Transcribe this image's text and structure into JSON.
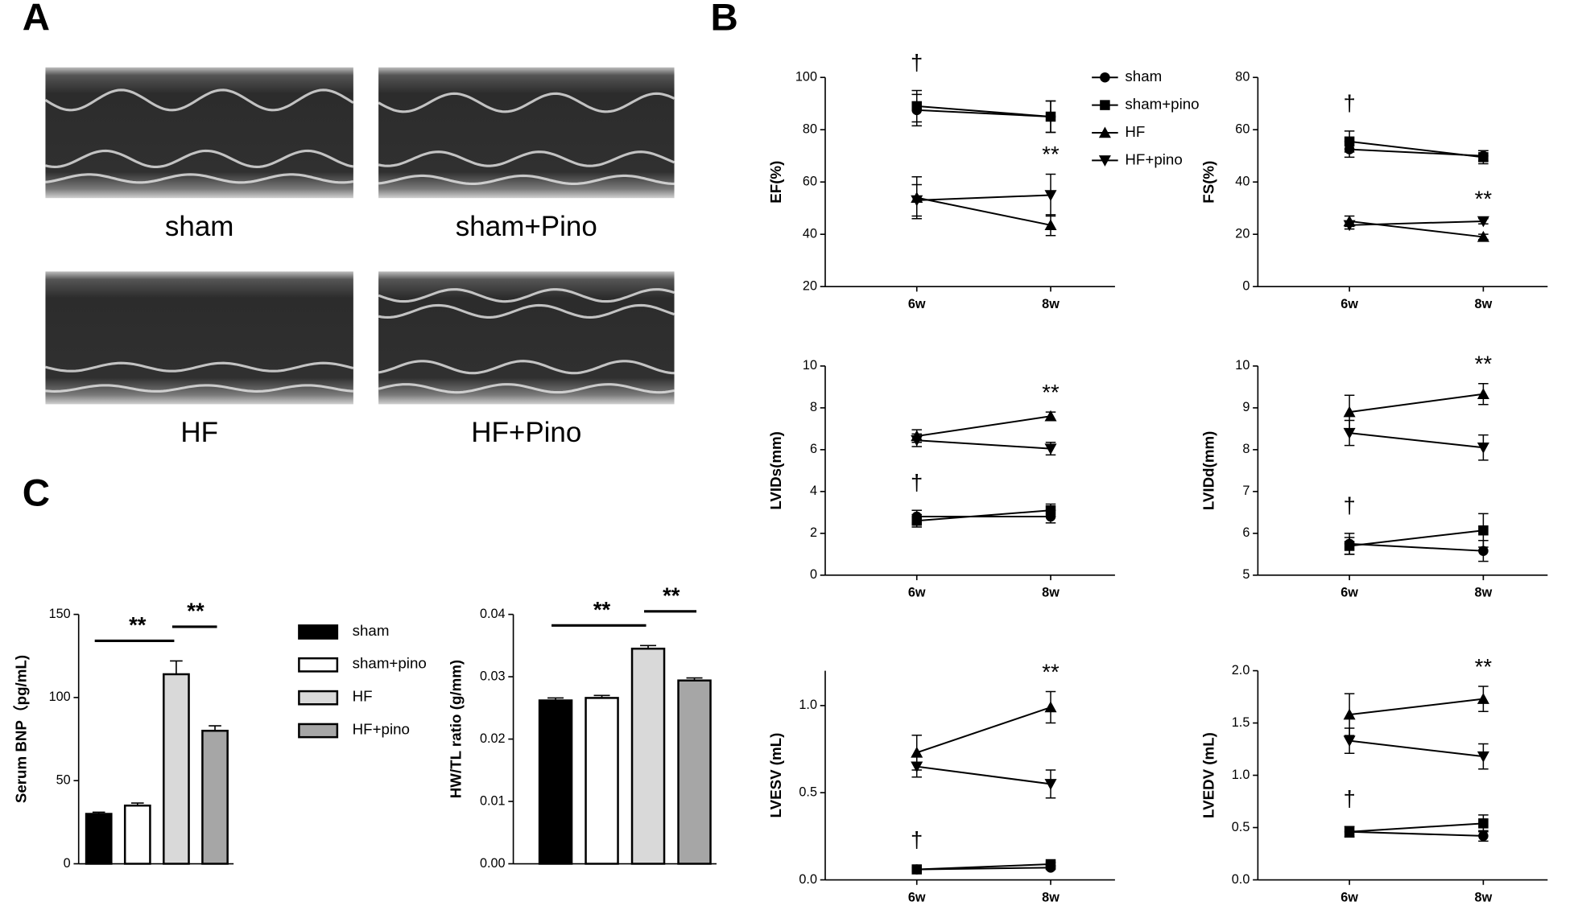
{
  "panel_labels": [
    "A",
    "B",
    "C"
  ],
  "echo_images": [
    {
      "label": "sham"
    },
    {
      "label": "sham+Pino"
    },
    {
      "label": "HF"
    },
    {
      "label": "HF+Pino"
    }
  ],
  "chart_data": [
    {
      "type": "line",
      "ylabel": "EF(%)",
      "categories": [
        "6w",
        "8w"
      ],
      "ylim": [
        20,
        100
      ],
      "yticks": [
        20,
        40,
        60,
        80,
        100
      ],
      "legend": "upper right",
      "series": [
        {
          "name": "sham",
          "marker": "circle",
          "color": "#000000",
          "values": [
            87.5,
            85
          ],
          "errors": [
            6,
            6
          ]
        },
        {
          "name": "sham+pino",
          "marker": "square",
          "color": "#000000",
          "values": [
            89,
            85
          ],
          "errors": [
            6,
            6
          ]
        },
        {
          "name": "HF",
          "marker": "triangle-up",
          "color": "#000000",
          "values": [
            54,
            43.5
          ],
          "errors": [
            8,
            4
          ]
        },
        {
          "name": "HF+pino",
          "marker": "triangle-down",
          "color": "#000000",
          "values": [
            53,
            55
          ],
          "errors": [
            6,
            8
          ]
        }
      ],
      "annotations": [
        "†",
        "**"
      ]
    },
    {
      "type": "line",
      "ylabel": "FS(%)",
      "categories": [
        "6w",
        "8w"
      ],
      "ylim": [
        0,
        80
      ],
      "yticks": [
        0,
        20,
        40,
        60,
        80
      ],
      "series": [
        {
          "marker": "circle",
          "color": "#000000",
          "values": [
            52.5,
            50
          ],
          "errors": [
            3,
            2
          ]
        },
        {
          "marker": "square",
          "color": "#000000",
          "values": [
            55.5,
            49.5
          ],
          "errors": [
            4,
            2.5
          ]
        },
        {
          "marker": "triangle-up",
          "color": "#000000",
          "values": [
            25,
            19
          ],
          "errors": [
            2,
            1
          ]
        },
        {
          "marker": "triangle-down",
          "color": "#000000",
          "values": [
            23.5,
            25
          ],
          "errors": [
            1.5,
            1
          ]
        }
      ],
      "annotations": [
        "†",
        "**"
      ]
    },
    {
      "type": "line",
      "ylabel": "LVIDs(mm)",
      "categories": [
        "6w",
        "8w"
      ],
      "ylim": [
        0,
        10
      ],
      "yticks": [
        0,
        2,
        4,
        6,
        8,
        10
      ],
      "series": [
        {
          "marker": "circle",
          "color": "#000000",
          "values": [
            2.8,
            2.8
          ],
          "errors": [
            0.3,
            0.3
          ]
        },
        {
          "marker": "square",
          "color": "#000000",
          "values": [
            2.6,
            3.1
          ],
          "errors": [
            0.3,
            0.3
          ]
        },
        {
          "marker": "triangle-up",
          "color": "#000000",
          "values": [
            6.65,
            7.6
          ],
          "errors": [
            0.3,
            0.2
          ]
        },
        {
          "marker": "triangle-down",
          "color": "#000000",
          "values": [
            6.45,
            6.05
          ],
          "errors": [
            0.3,
            0.3
          ]
        }
      ],
      "annotations": [
        "†",
        "**"
      ]
    },
    {
      "type": "line",
      "ylabel": "LVIDd(mm)",
      "categories": [
        "6w",
        "8w"
      ],
      "ylim": [
        5,
        10
      ],
      "yticks": [
        5,
        6,
        7,
        8,
        9,
        10
      ],
      "series": [
        {
          "marker": "circle",
          "color": "#000000",
          "values": [
            5.75,
            5.58
          ],
          "errors": [
            0.25,
            0.25
          ]
        },
        {
          "marker": "square",
          "color": "#000000",
          "values": [
            5.7,
            6.07
          ],
          "errors": [
            0.2,
            0.4
          ]
        },
        {
          "marker": "triangle-up",
          "color": "#000000",
          "values": [
            8.9,
            9.33
          ],
          "errors": [
            0.4,
            0.25
          ]
        },
        {
          "marker": "triangle-down",
          "color": "#000000",
          "values": [
            8.4,
            8.05
          ],
          "errors": [
            0.3,
            0.3
          ]
        }
      ],
      "annotations": [
        "†",
        "**"
      ]
    },
    {
      "type": "line",
      "ylabel": "LVESV (mL)",
      "categories": [
        "6w",
        "8w"
      ],
      "ylim": [
        0,
        1.2
      ],
      "yticks": [
        {
          "value": 0,
          "label": "0.0"
        },
        {
          "value": 0.5,
          "label": "0.5"
        },
        {
          "value": 1,
          "label": "1.0"
        }
      ],
      "series": [
        {
          "marker": "circle",
          "color": "#000000",
          "values": [
            0.06,
            0.07
          ],
          "errors": [
            0.01,
            0.01
          ]
        },
        {
          "marker": "square",
          "color": "#000000",
          "values": [
            0.06,
            0.09
          ],
          "errors": [
            0.01,
            0.01
          ]
        },
        {
          "marker": "triangle-up",
          "color": "#000000",
          "values": [
            0.73,
            0.99
          ],
          "errors": [
            0.1,
            0.09
          ]
        },
        {
          "marker": "triangle-down",
          "color": "#000000",
          "values": [
            0.65,
            0.55
          ],
          "errors": [
            0.06,
            0.08
          ]
        }
      ],
      "annotations": [
        "†",
        "**"
      ]
    },
    {
      "type": "line",
      "ylabel": "LVEDV (mL)",
      "categories": [
        "6w",
        "8w"
      ],
      "ylim": [
        0,
        2
      ],
      "yticks": [
        {
          "value": 0,
          "label": "0.0"
        },
        {
          "value": 0.5,
          "label": "0.5"
        },
        {
          "value": 1,
          "label": "1.0"
        },
        {
          "value": 1.5,
          "label": "1.5"
        },
        {
          "value": 2,
          "label": "2.0"
        }
      ],
      "series": [
        {
          "marker": "circle",
          "color": "#000000",
          "values": [
            0.46,
            0.42
          ],
          "errors": [
            0.05,
            0.05
          ]
        },
        {
          "marker": "square",
          "color": "#000000",
          "values": [
            0.46,
            0.54
          ],
          "errors": [
            0.05,
            0.08
          ]
        },
        {
          "marker": "triangle-up",
          "color": "#000000",
          "values": [
            1.58,
            1.73
          ],
          "errors": [
            0.2,
            0.12
          ]
        },
        {
          "marker": "triangle-down",
          "color": "#000000",
          "values": [
            1.33,
            1.18
          ],
          "errors": [
            0.12,
            0.12
          ]
        }
      ],
      "annotations": [
        "†",
        "**"
      ]
    },
    {
      "type": "bar",
      "ylabel": "Serum BNP（pg/mL)",
      "ylim": [
        0,
        150
      ],
      "yticks": [
        0,
        50,
        100,
        150
      ],
      "legend": "right",
      "series": [
        {
          "name": "sham",
          "color": "#000000",
          "values": [
            30
          ],
          "errors": [
            1
          ]
        },
        {
          "name": "sham+pino",
          "color": "#ffffff",
          "values": [
            35
          ],
          "errors": [
            1.5
          ]
        },
        {
          "name": "HF",
          "color": "#d9d9d9",
          "values": [
            114
          ],
          "errors": [
            8
          ]
        },
        {
          "name": "HF+pino",
          "color": "#a6a6a6",
          "values": [
            80
          ],
          "errors": [
            3
          ]
        }
      ],
      "annotations": [
        "**",
        "**"
      ]
    },
    {
      "type": "bar",
      "ylabel": "HW/TL ratio (g/mm)",
      "ylim": [
        0,
        0.04
      ],
      "yticks": [
        {
          "value": 0,
          "label": "0.00"
        },
        {
          "value": 0.01,
          "label": "0.01"
        },
        {
          "value": 0.02,
          "label": "0.02"
        },
        {
          "value": 0.03,
          "label": "0.03"
        },
        {
          "value": 0.04,
          "label": "0.04"
        }
      ],
      "series": [
        {
          "color": "#000000",
          "values": [
            0.0262
          ],
          "errors": [
            0.0004
          ]
        },
        {
          "color": "#ffffff",
          "values": [
            0.0266
          ],
          "errors": [
            0.0004
          ]
        },
        {
          "color": "#d9d9d9",
          "values": [
            0.0345
          ],
          "errors": [
            0.0005
          ]
        },
        {
          "color": "#a6a6a6",
          "values": [
            0.0294
          ],
          "errors": [
            0.0004
          ]
        }
      ],
      "annotations": [
        "**",
        "**"
      ]
    }
  ]
}
